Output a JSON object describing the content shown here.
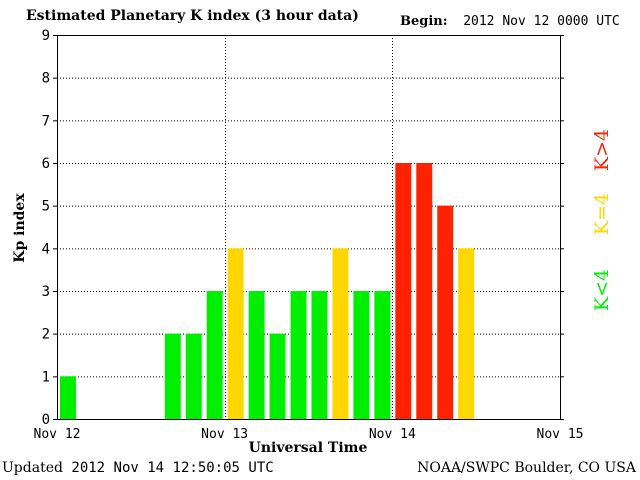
{
  "header": {
    "title": "Estimated Planetary K index (3 hour data)",
    "begin_label": "Begin:",
    "begin_value": "2012 Nov 12 0000 UTC"
  },
  "footer": {
    "updated_label": "Updated",
    "updated_value": "2012 Nov 14 12:50:05 UTC",
    "credit": "NOAA/SWPC Boulder, CO USA"
  },
  "legend": {
    "high": "K>4",
    "mid": "K=4",
    "low": "K<4"
  },
  "colors": {
    "low": "#00ee00",
    "mid": "#ffd700",
    "high": "#ff2200"
  },
  "chart_data": {
    "type": "bar",
    "title": "Estimated Planetary K index (3 hour data)",
    "xlabel": "Universal Time",
    "ylabel": "Kp index",
    "ylim": [
      0,
      9
    ],
    "yticks": [
      "0",
      "1",
      "2",
      "3",
      "4",
      "5",
      "6",
      "7",
      "8",
      "9"
    ],
    "xticks": [
      "Nov 12",
      "Nov 13",
      "Nov 14",
      "Nov 15"
    ],
    "grid": true,
    "interval": "3 hour",
    "x": [
      "2012-11-12 00:00",
      "2012-11-12 15:00",
      "2012-11-12 18:00",
      "2012-11-12 21:00",
      "2012-11-13 00:00",
      "2012-11-13 03:00",
      "2012-11-13 06:00",
      "2012-11-13 09:00",
      "2012-11-13 12:00",
      "2012-11-13 15:00",
      "2012-11-13 18:00",
      "2012-11-13 21:00",
      "2012-11-14 00:00",
      "2012-11-14 03:00",
      "2012-11-14 06:00",
      "2012-11-14 09:00"
    ],
    "values": [
      1,
      2,
      2,
      3,
      4,
      3,
      2,
      3,
      3,
      4,
      3,
      3,
      6,
      6,
      5,
      4
    ]
  }
}
